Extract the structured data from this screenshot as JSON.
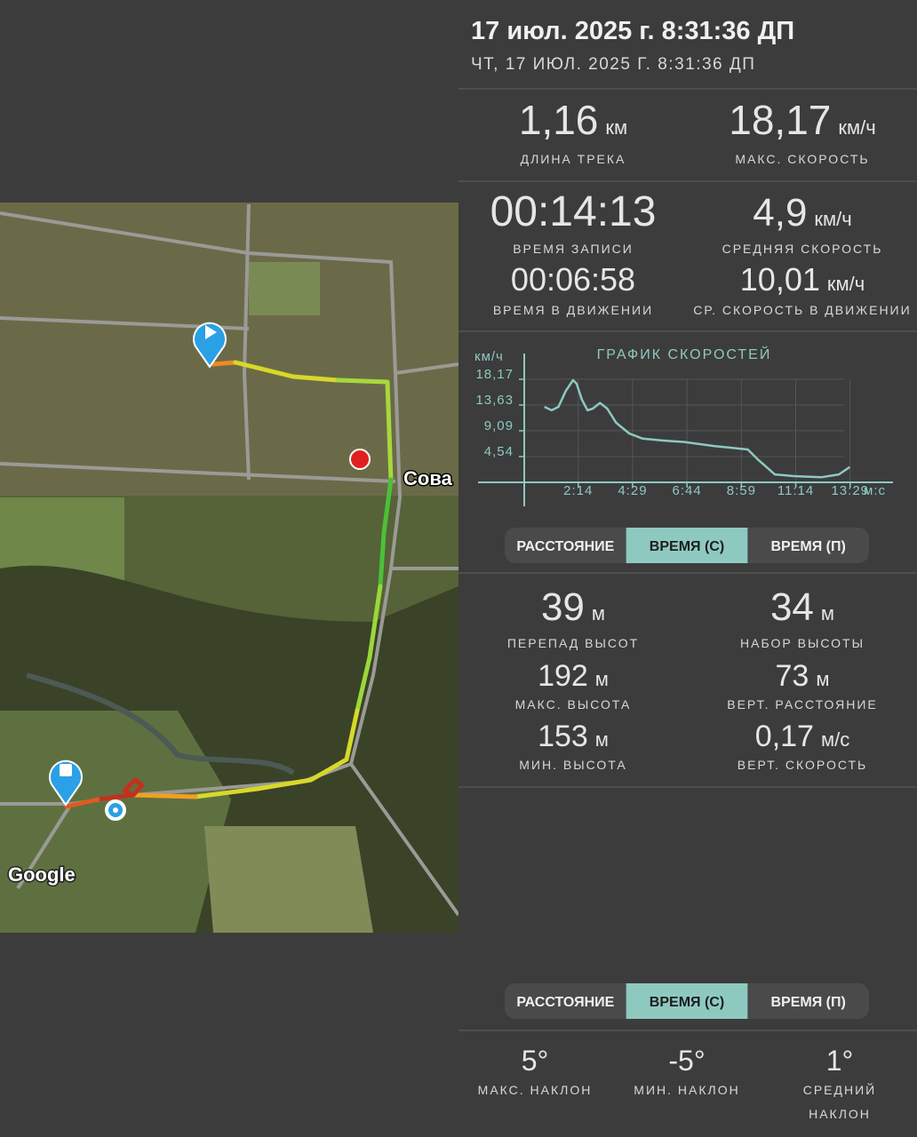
{
  "header": {
    "title": "17 июл. 2025 г. 8:31:36 ДП",
    "subtitle": "ЧТ, 17 ИЮЛ. 2025 Г. 8:31:36 ДП"
  },
  "map": {
    "place_label": "Сова",
    "attribution": "Google"
  },
  "track_stats": [
    {
      "value": "1,16",
      "unit": "км",
      "label": "ДЛИНА ТРЕКА"
    },
    {
      "value": "18,17",
      "unit": "км/ч",
      "label": "МАКС. СКОРОСТЬ"
    },
    {
      "value": "00:14:13",
      "label": "ВРЕМЯ ЗАПИСИ"
    },
    {
      "value": "4,9",
      "unit": "км/ч",
      "label": "СРЕДНЯЯ СКОРОСТЬ"
    },
    {
      "value": "00:06:58",
      "label": "ВРЕМЯ В ДВИЖЕНИИ"
    },
    {
      "value": "10,01",
      "unit": "км/ч",
      "label": "СР. СКОРОСТЬ В ДВИЖЕНИИ"
    }
  ],
  "speed_chart": {
    "type": "line",
    "title": "ГРАФИК СКОРОСТЕЙ",
    "y_unit": "км/ч",
    "x_unit": "м:с",
    "x": [
      50,
      68,
      85,
      103,
      121,
      130,
      143,
      157,
      170,
      188,
      206,
      228,
      261,
      294,
      339,
      398,
      471,
      555,
      582,
      622,
      670,
      737,
      781,
      808
    ],
    "values": [
      13.3,
      12.7,
      13.3,
      16.1,
      18.0,
      17.4,
      14.6,
      12.7,
      13.0,
      14.0,
      13.0,
      10.5,
      8.6,
      7.7,
      7.4,
      7.1,
      6.4,
      5.8,
      3.9,
      1.4,
      1.1,
      0.9,
      1.4,
      2.7
    ],
    "color": "#8ec9c0",
    "xlim": [
      0,
      900
    ],
    "ylim": [
      0,
      22.7
    ],
    "yticks": [
      {
        "value": 4.54,
        "label": "4,54"
      },
      {
        "value": 9.09,
        "label": "9,09"
      },
      {
        "value": 13.63,
        "label": "13,63"
      },
      {
        "value": 18.17,
        "label": "18,17"
      }
    ],
    "xticks": [
      {
        "value": 134,
        "label": "2:14"
      },
      {
        "value": 269,
        "label": "4:29"
      },
      {
        "value": 404,
        "label": "6:44"
      },
      {
        "value": 539,
        "label": "8:59"
      },
      {
        "value": 674,
        "label": "11:14"
      },
      {
        "value": 809,
        "label": "13:29"
      }
    ],
    "grid": true
  },
  "tabs_top": {
    "options": [
      "РАССТОЯНИЕ",
      "ВРЕМЯ (С)",
      "ВРЕМЯ (П)"
    ],
    "selected": 1
  },
  "elevation_stats": [
    {
      "value": "39",
      "unit": "м",
      "label": "ПЕРЕПАД ВЫСОТ"
    },
    {
      "value": "34",
      "unit": "м",
      "label": "НАБОР ВЫСОТЫ"
    },
    {
      "value": "192",
      "unit": "м",
      "label": "МАКС. ВЫСОТА"
    },
    {
      "value": "73",
      "unit": "м",
      "label": "ВЕРТ. РАССТОЯНИЕ"
    },
    {
      "value": "153",
      "unit": "м",
      "label": "МИН. ВЫСОТА"
    },
    {
      "value": "0,17",
      "unit": "м/с",
      "label": "ВЕРТ. СКОРОСТЬ"
    }
  ],
  "tabs_bottom": {
    "options": [
      "РАССТОЯНИЕ",
      "ВРЕМЯ (С)",
      "ВРЕМЯ (П)"
    ],
    "selected": 1
  },
  "slope_stats": [
    {
      "value": "5°",
      "label": "МАКС. НАКЛОН"
    },
    {
      "value": "-5°",
      "label": "МИН. НАКЛОН"
    },
    {
      "value": "1°",
      "label": "СРЕДНИЙ НАКЛОН"
    }
  ]
}
